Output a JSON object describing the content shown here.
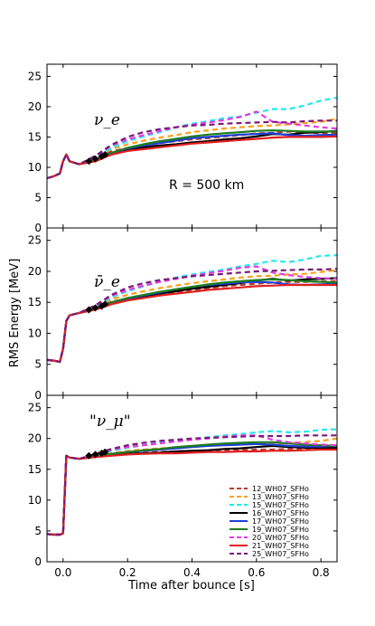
{
  "chart_data": {
    "type": "line",
    "xlabel": "Time after bounce [s]",
    "ylabel": "RMS Energy [MeV]",
    "xlim": [
      -0.05,
      0.85
    ],
    "ylim": [
      0,
      27
    ],
    "xticks": [
      "0.0",
      "0.2",
      "0.4",
      "0.6",
      "0.8"
    ],
    "yticks": [
      "0",
      "5",
      "10",
      "15",
      "20",
      "25"
    ],
    "legend_position": "bottom-right of lower panel",
    "series_styles": [
      {
        "name": "12_WH07_SFHo",
        "color": "#c0392b",
        "dash": "dashed"
      },
      {
        "name": "13_WH07_SFHo",
        "color": "#ff9f1a",
        "dash": "dashed"
      },
      {
        "name": "15_WH07_SFHo",
        "color": "#22e8ef",
        "dash": "dashed"
      },
      {
        "name": "16_WH07_SFHo",
        "color": "#000000",
        "dash": "solid"
      },
      {
        "name": "17_WH07_SFHo",
        "color": "#1f3fd6",
        "dash": "solid"
      },
      {
        "name": "19_WH07_SFHo",
        "color": "#1e7d1e",
        "dash": "solid"
      },
      {
        "name": "20_WH07_SFHo",
        "color": "#e43ae4",
        "dash": "dashed"
      },
      {
        "name": "21_WH07_SFHo",
        "color": "#e02020",
        "dash": "solid"
      },
      {
        "name": "25_WH07_SFHo",
        "color": "#7a1a7a",
        "dash": "dashed"
      }
    ],
    "x": [
      -0.05,
      -0.03,
      -0.01,
      0.0,
      0.01,
      0.02,
      0.05,
      0.1,
      0.15,
      0.2,
      0.25,
      0.3,
      0.35,
      0.4,
      0.45,
      0.5,
      0.55,
      0.6,
      0.65,
      0.7,
      0.75,
      0.8,
      0.85
    ],
    "panels": [
      {
        "label": "ν_e",
        "annotation": "R = 500 km",
        "markers": [
          [
            0.08,
            11.0
          ],
          [
            0.1,
            11.4
          ],
          [
            0.12,
            11.8
          ],
          [
            0.13,
            12.1
          ]
        ],
        "series": [
          {
            "name": "12_WH07_SFHo",
            "values": [
              8.2,
              8.5,
              9.0,
              11.0,
              12.1,
              11.0,
              10.5,
              11.4,
              12.6,
              13.2,
              13.6,
              14.0,
              14.3,
              14.6,
              14.8,
              15.1,
              15.3,
              15.6,
              15.7,
              15.9,
              15.8,
              15.6,
              15.6
            ]
          },
          {
            "name": "13_WH07_SFHo",
            "values": [
              8.2,
              8.5,
              9.0,
              11.0,
              12.1,
              11.0,
              10.5,
              11.6,
              13.0,
              13.8,
              14.4,
              14.9,
              15.3,
              15.8,
              16.1,
              16.4,
              16.6,
              16.8,
              16.9,
              17.1,
              17.3,
              17.5,
              18.0
            ]
          },
          {
            "name": "15_WH07_SFHo",
            "values": [
              8.2,
              8.5,
              9.0,
              11.0,
              12.1,
              11.0,
              10.5,
              11.6,
              13.2,
              14.3,
              15.1,
              15.8,
              16.6,
              17.2,
              17.6,
              18.1,
              18.4,
              19.0,
              19.6,
              19.6,
              20.2,
              21.0,
              21.5
            ]
          },
          {
            "name": "16_WH07_SFHo",
            "values": [
              8.2,
              8.5,
              9.0,
              11.0,
              12.1,
              11.0,
              10.5,
              11.2,
              12.3,
              12.9,
              13.3,
              13.6,
              13.8,
              14.1,
              14.3,
              14.6,
              14.8,
              15.1,
              15.5,
              15.4,
              15.7,
              15.8,
              16.0
            ]
          },
          {
            "name": "17_WH07_SFHo",
            "values": [
              8.2,
              8.5,
              9.0,
              11.0,
              12.1,
              11.0,
              10.5,
              11.3,
              12.4,
              13.1,
              13.6,
              14.0,
              14.4,
              14.8,
              15.0,
              15.2,
              15.4,
              15.5,
              15.6,
              15.3,
              15.2,
              15.3,
              15.4
            ]
          },
          {
            "name": "19_WH07_SFHo",
            "values": [
              8.2,
              8.5,
              9.0,
              11.0,
              12.1,
              11.0,
              10.5,
              11.2,
              12.4,
              13.2,
              13.8,
              14.3,
              14.7,
              15.1,
              15.4,
              15.6,
              15.8,
              16.0,
              16.1,
              16.0,
              15.9,
              15.9,
              15.9
            ]
          },
          {
            "name": "20_WH07_SFHo",
            "values": [
              8.2,
              8.5,
              9.0,
              11.0,
              12.1,
              11.0,
              10.5,
              11.8,
              13.6,
              14.6,
              15.3,
              16.0,
              16.6,
              17.0,
              17.4,
              17.8,
              18.3,
              19.2,
              17.5,
              17.2,
              16.9,
              16.6,
              16.4
            ]
          },
          {
            "name": "21_WH07_SFHo",
            "values": [
              8.2,
              8.5,
              9.0,
              11.0,
              12.1,
              11.0,
              10.5,
              11.0,
              12.1,
              12.7,
              13.0,
              13.3,
              13.6,
              13.9,
              14.1,
              14.3,
              14.5,
              14.7,
              14.9,
              15.0,
              15.0,
              15.0,
              15.1
            ]
          },
          {
            "name": "25_WH07_SFHo",
            "values": [
              8.2,
              8.5,
              9.0,
              11.0,
              12.1,
              11.0,
              10.5,
              11.9,
              13.7,
              15.0,
              15.8,
              16.3,
              16.6,
              16.9,
              17.0,
              17.2,
              17.3,
              17.4,
              17.5,
              17.4,
              17.6,
              17.7,
              17.7
            ]
          }
        ]
      },
      {
        "label": "ν̄_e",
        "annotation": "",
        "markers": [
          [
            0.08,
            13.8
          ],
          [
            0.1,
            14.1
          ],
          [
            0.12,
            14.4
          ],
          [
            0.13,
            14.7
          ]
        ],
        "series": [
          {
            "name": "12_WH07_SFHo",
            "values": [
              5.7,
              5.6,
              5.4,
              7.5,
              12.0,
              12.9,
              13.3,
              14.0,
              15.1,
              15.6,
              16.0,
              16.4,
              16.7,
              17.0,
              17.3,
              17.6,
              17.8,
              18.0,
              18.2,
              18.3,
              18.3,
              18.4,
              18.4
            ]
          },
          {
            "name": "13_WH07_SFHo",
            "values": [
              5.7,
              5.6,
              5.4,
              7.5,
              12.0,
              12.9,
              13.3,
              14.2,
              15.5,
              16.2,
              16.8,
              17.3,
              17.7,
              18.1,
              18.4,
              18.7,
              19.0,
              19.2,
              19.3,
              19.5,
              19.6,
              19.9,
              20.2
            ]
          },
          {
            "name": "15_WH07_SFHo",
            "values": [
              5.7,
              5.6,
              5.4,
              7.5,
              12.0,
              12.9,
              13.3,
              14.2,
              15.8,
              16.8,
              17.6,
              18.3,
              19.0,
              19.5,
              19.9,
              20.3,
              20.8,
              21.2,
              21.7,
              21.5,
              21.9,
              22.5,
              22.6
            ]
          },
          {
            "name": "16_WH07_SFHo",
            "values": [
              5.7,
              5.6,
              5.4,
              7.5,
              12.0,
              12.9,
              13.3,
              13.9,
              14.9,
              15.5,
              16.0,
              16.4,
              16.8,
              17.2,
              17.5,
              17.8,
              18.1,
              18.5,
              18.8,
              18.5,
              18.7,
              18.8,
              18.9
            ]
          },
          {
            "name": "17_WH07_SFHo",
            "values": [
              5.7,
              5.6,
              5.4,
              7.5,
              12.0,
              12.9,
              13.3,
              14.0,
              15.0,
              15.6,
              16.1,
              16.6,
              17.1,
              17.5,
              17.8,
              18.0,
              18.2,
              18.3,
              18.2,
              17.9,
              17.8,
              17.9,
              18.0
            ]
          },
          {
            "name": "19_WH07_SFHo",
            "values": [
              5.7,
              5.6,
              5.4,
              7.5,
              12.0,
              12.9,
              13.3,
              13.9,
              15.0,
              15.7,
              16.2,
              16.7,
              17.1,
              17.5,
              17.9,
              18.2,
              18.4,
              18.6,
              18.7,
              18.6,
              18.4,
              18.3,
              18.2
            ]
          },
          {
            "name": "20_WH07_SFHo",
            "values": [
              5.7,
              5.6,
              5.4,
              7.5,
              12.0,
              12.9,
              13.3,
              14.4,
              16.1,
              17.0,
              17.7,
              18.3,
              18.8,
              19.3,
              19.7,
              20.1,
              20.6,
              20.8,
              19.8,
              19.4,
              19.1,
              18.9,
              18.8
            ]
          },
          {
            "name": "21_WH07_SFHo",
            "values": [
              5.7,
              5.6,
              5.4,
              7.5,
              12.0,
              12.9,
              13.3,
              13.8,
              14.7,
              15.3,
              15.7,
              16.1,
              16.4,
              16.7,
              17.0,
              17.2,
              17.4,
              17.6,
              17.7,
              17.8,
              17.8,
              17.8,
              17.8
            ]
          },
          {
            "name": "25_WH07_SFHo",
            "values": [
              5.7,
              5.6,
              5.4,
              7.5,
              12.0,
              12.9,
              13.3,
              14.5,
              16.2,
              17.4,
              18.1,
              18.6,
              18.9,
              19.2,
              19.4,
              19.6,
              19.8,
              20.0,
              20.1,
              20.2,
              20.3,
              20.3,
              20.4
            ]
          }
        ]
      },
      {
        "label": "\"ν_μ\"",
        "annotation": "",
        "markers": [
          [
            0.08,
            17.2
          ],
          [
            0.1,
            17.4
          ],
          [
            0.12,
            17.6
          ],
          [
            0.13,
            17.8
          ]
        ],
        "series": [
          {
            "name": "12_WH07_SFHo",
            "values": [
              4.5,
              4.4,
              4.4,
              4.6,
              17.2,
              16.9,
              16.7,
              17.1,
              17.4,
              17.6,
              17.7,
              17.8,
              17.9,
              18.0,
              18.0,
              18.1,
              18.1,
              18.2,
              18.2,
              18.3,
              18.3,
              18.4,
              18.4
            ]
          },
          {
            "name": "13_WH07_SFHo",
            "values": [
              4.5,
              4.4,
              4.4,
              4.6,
              17.2,
              16.9,
              16.7,
              17.2,
              17.6,
              18.0,
              18.2,
              18.4,
              18.5,
              18.7,
              18.8,
              18.9,
              19.0,
              19.1,
              19.2,
              19.3,
              19.4,
              19.6,
              20.0
            ]
          },
          {
            "name": "15_WH07_SFHo",
            "values": [
              4.5,
              4.4,
              4.4,
              4.6,
              17.2,
              16.9,
              16.7,
              17.3,
              18.0,
              18.5,
              18.9,
              19.3,
              19.6,
              19.9,
              20.2,
              20.5,
              20.7,
              21.0,
              21.2,
              21.0,
              21.1,
              21.4,
              21.5
            ]
          },
          {
            "name": "16_WH07_SFHo",
            "values": [
              4.5,
              4.4,
              4.4,
              4.6,
              17.2,
              16.9,
              16.7,
              17.0,
              17.3,
              17.5,
              17.6,
              17.7,
              17.9,
              18.0,
              18.1,
              18.3,
              18.4,
              18.6,
              18.8,
              18.6,
              18.5,
              18.5,
              18.5
            ]
          },
          {
            "name": "17_WH07_SFHo",
            "values": [
              4.5,
              4.4,
              4.4,
              4.6,
              17.2,
              16.9,
              16.7,
              17.1,
              17.5,
              17.8,
              18.0,
              18.2,
              18.4,
              18.6,
              18.8,
              18.9,
              19.0,
              19.1,
              19.0,
              18.8,
              18.7,
              18.7,
              18.8
            ]
          },
          {
            "name": "19_WH07_SFHo",
            "values": [
              4.5,
              4.4,
              4.4,
              4.6,
              17.2,
              16.9,
              16.7,
              17.1,
              17.5,
              17.8,
              18.1,
              18.3,
              18.6,
              18.8,
              19.0,
              19.2,
              19.3,
              19.4,
              19.4,
              19.2,
              19.0,
              18.9,
              18.8
            ]
          },
          {
            "name": "20_WH07_SFHo",
            "values": [
              4.5,
              4.4,
              4.4,
              4.6,
              17.2,
              16.9,
              16.7,
              17.4,
              18.2,
              18.6,
              18.9,
              19.2,
              19.5,
              19.8,
              20.0,
              20.3,
              20.5,
              20.5,
              19.8,
              19.4,
              19.2,
              19.0,
              18.9
            ]
          },
          {
            "name": "21_WH07_SFHo",
            "values": [
              4.5,
              4.4,
              4.4,
              4.6,
              17.2,
              16.9,
              16.7,
              17.0,
              17.2,
              17.4,
              17.5,
              17.6,
              17.6,
              17.7,
              17.8,
              17.8,
              17.9,
              17.9,
              18.0,
              18.0,
              18.1,
              18.2,
              18.2
            ]
          },
          {
            "name": "25_WH07_SFHo",
            "values": [
              4.5,
              4.4,
              4.4,
              4.6,
              17.2,
              16.9,
              16.7,
              17.5,
              18.3,
              18.9,
              19.3,
              19.6,
              19.8,
              20.0,
              20.1,
              20.2,
              20.3,
              20.4,
              20.4,
              20.4,
              20.5,
              20.5,
              20.5
            ]
          }
        ]
      }
    ]
  }
}
